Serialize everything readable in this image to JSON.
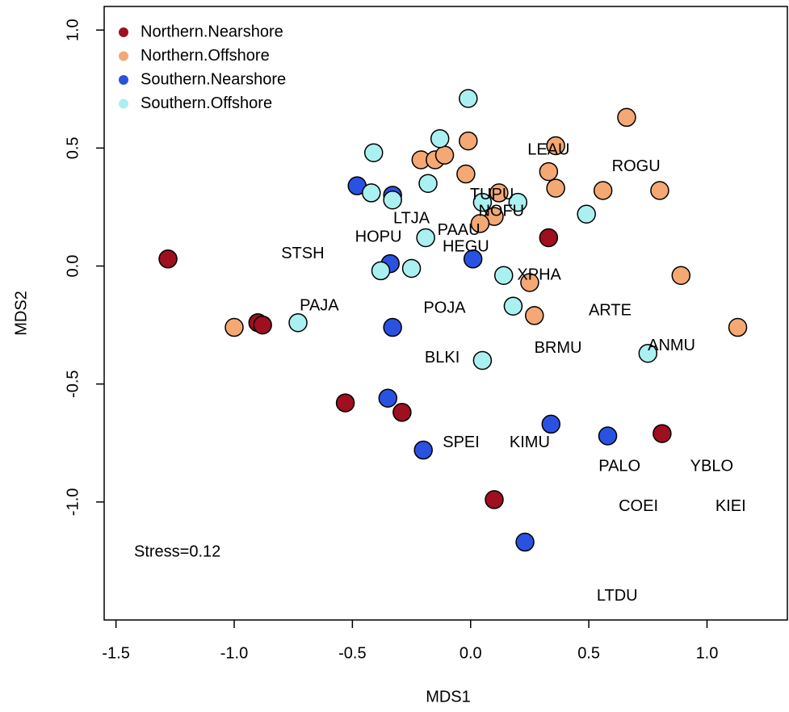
{
  "chart_data": {
    "type": "scatter",
    "xlabel": "MDS1",
    "ylabel": "MDS2",
    "xlim": [
      -1.55,
      1.34
    ],
    "ylim": [
      -1.5,
      1.1
    ],
    "xticks": [
      {
        "value": -1.5,
        "label": "-1.5"
      },
      {
        "value": -1,
        "label": "-1.0"
      },
      -0.5,
      {
        "value": 0,
        "label": "0.0"
      },
      0.5,
      {
        "value": 1,
        "label": "1.0"
      }
    ],
    "yticks": [
      {
        "value": -1,
        "label": "-1.0"
      },
      -0.5,
      {
        "value": 0,
        "label": "0.0"
      },
      0.5,
      {
        "value": 1,
        "label": "1.0"
      }
    ],
    "legend": "topleft",
    "annotation": "Stress=0.12",
    "series": [
      {
        "name": "Northern.Nearshore",
        "color": "#9e0f1f",
        "x": [
          -1.28,
          0.33,
          -0.9,
          -0.88,
          -0.53,
          -0.29,
          0.81,
          0.1
        ],
        "y": [
          0.03,
          0.12,
          -0.24,
          -0.25,
          -0.58,
          -0.62,
          -0.71,
          -0.99
        ]
      },
      {
        "name": "Northern.Offshore",
        "color": "#f4a874",
        "x": [
          -1.0,
          0.66,
          0.36,
          -0.21,
          -0.15,
          -0.11,
          -0.01,
          -0.02,
          0.33,
          0.36,
          0.56,
          0.8,
          0.12,
          0.1,
          0.04,
          0.89,
          0.25,
          0.27,
          1.13
        ],
        "y": [
          -0.26,
          0.63,
          0.51,
          0.45,
          0.45,
          0.47,
          0.53,
          0.39,
          0.4,
          0.33,
          0.32,
          0.32,
          0.31,
          0.21,
          0.18,
          -0.04,
          -0.07,
          -0.21,
          -0.26
        ]
      },
      {
        "name": "Southern.Nearshore",
        "color": "#2a52e0",
        "x": [
          -0.48,
          -0.33,
          -0.34,
          -0.33,
          -0.35,
          -0.2,
          0.01,
          0.34,
          0.58,
          0.23
        ],
        "y": [
          0.34,
          0.3,
          0.01,
          -0.26,
          -0.56,
          -0.78,
          0.03,
          -0.67,
          -0.72,
          -1.17
        ]
      },
      {
        "name": "Southern.Offshore",
        "color": "#aaf0f0",
        "x": [
          -0.41,
          -0.13,
          -0.01,
          -0.42,
          -0.33,
          -0.18,
          -0.19,
          0.05,
          0.2,
          0.49,
          -0.38,
          -0.25,
          0.14,
          0.18,
          -0.73,
          0.05,
          0.75
        ],
        "y": [
          0.48,
          0.54,
          0.71,
          0.31,
          0.28,
          0.35,
          0.12,
          0.27,
          0.27,
          0.22,
          -0.02,
          -0.01,
          -0.04,
          -0.17,
          -0.24,
          -0.4,
          -0.37
        ]
      }
    ],
    "text_labels": {
      "text": [
        "LEAU",
        "ROGU",
        "TUPU",
        "NOFU",
        "LTJA",
        "PAAU",
        "HOPU",
        "HEGU",
        "STSH",
        "XPHA",
        "PAJA",
        "POJA",
        "ARTE",
        "ANMU",
        "BRMU",
        "BLKI",
        "SPEI",
        "KIMU",
        "PALO",
        "YBLO",
        "COEI",
        "KIEI",
        "LTDU"
      ],
      "x": [
        0.33,
        0.7,
        0.09,
        0.13,
        -0.25,
        -0.05,
        -0.39,
        -0.02,
        -0.71,
        0.29,
        -0.64,
        -0.11,
        0.59,
        0.85,
        0.37,
        -0.12,
        -0.04,
        0.25,
        0.63,
        1.02,
        0.71,
        1.1,
        0.62
      ],
      "y": [
        0.49,
        0.42,
        0.3,
        0.23,
        0.2,
        0.15,
        0.12,
        0.08,
        0.05,
        -0.04,
        -0.17,
        -0.18,
        -0.19,
        -0.34,
        -0.35,
        -0.39,
        -0.75,
        -0.75,
        -0.85,
        -0.85,
        -1.02,
        -1.02,
        -1.4
      ]
    }
  }
}
